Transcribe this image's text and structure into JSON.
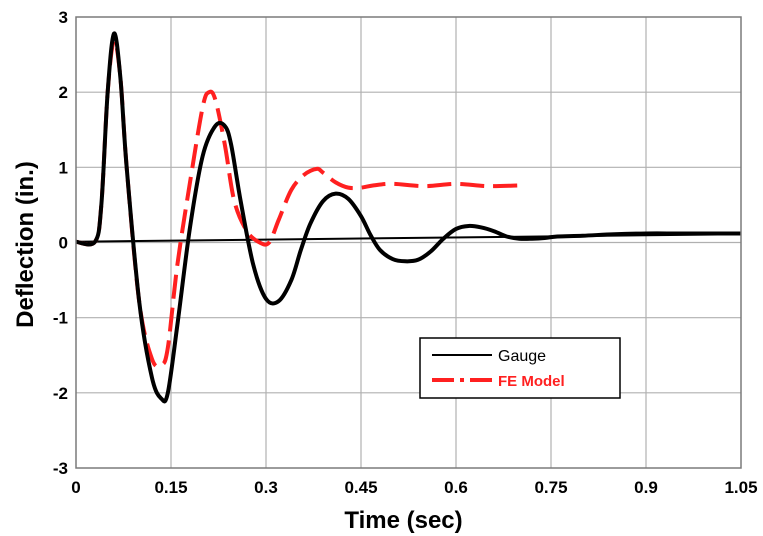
{
  "chart_data": {
    "type": "line",
    "title": "",
    "xlabel": "Time (sec)",
    "ylabel": "Deflection (in.)",
    "xlim": [
      0,
      1.05
    ],
    "ylim": [
      -3,
      3
    ],
    "x_ticks": [
      "0",
      "0.15",
      "0.3",
      "0.45",
      "0.6",
      "0.75",
      "0.9",
      "1.05"
    ],
    "y_ticks": [
      "3",
      "2",
      "1",
      "0",
      "-1",
      "-2",
      "-3"
    ],
    "grid": true,
    "legend_position": "bottom-right",
    "series": [
      {
        "name": "Gauge",
        "color": "#000000",
        "style": "solid",
        "x": [
          0,
          0.03,
          0.04,
          0.05,
          0.06,
          0.07,
          0.08,
          0.1,
          0.12,
          0.135,
          0.145,
          0.16,
          0.18,
          0.2,
          0.22,
          0.235,
          0.245,
          0.26,
          0.28,
          0.3,
          0.32,
          0.34,
          0.355,
          0.37,
          0.39,
          0.41,
          0.43,
          0.45,
          0.465,
          0.48,
          0.5,
          0.52,
          0.54,
          0.56,
          0.58,
          0.6,
          0.62,
          0.64,
          0.66,
          0.68,
          0.7,
          0.72,
          0.74,
          0.76,
          0.8,
          0.85,
          0.9,
          0.95,
          1.0,
          1.05
        ],
        "y": [
          0.01,
          0.01,
          0.5,
          2.0,
          2.78,
          2.2,
          1.0,
          -0.8,
          -1.8,
          -2.08,
          -2.0,
          -1.1,
          0.2,
          1.15,
          1.55,
          1.55,
          1.3,
          0.55,
          -0.3,
          -0.75,
          -0.78,
          -0.5,
          -0.1,
          0.25,
          0.55,
          0.65,
          0.58,
          0.35,
          0.1,
          -0.1,
          -0.22,
          -0.25,
          -0.23,
          -0.12,
          0.05,
          0.18,
          0.22,
          0.2,
          0.15,
          0.08,
          0.05,
          0.05,
          0.06,
          0.08,
          0.09,
          0.11,
          0.12,
          0.12,
          0.12,
          0.12
        ]
      },
      {
        "name": "FE Model",
        "color": "#ff2020",
        "style": "dashed",
        "x": [
          0,
          0.03,
          0.04,
          0.05,
          0.06,
          0.07,
          0.08,
          0.1,
          0.12,
          0.135,
          0.145,
          0.16,
          0.18,
          0.2,
          0.21,
          0.22,
          0.235,
          0.25,
          0.27,
          0.29,
          0.305,
          0.32,
          0.34,
          0.36,
          0.38,
          0.39,
          0.41,
          0.43,
          0.45,
          0.47,
          0.5,
          0.55,
          0.6,
          0.65,
          0.7
        ],
        "y": [
          0.01,
          0.01,
          0.5,
          2.0,
          2.68,
          2.2,
          1.0,
          -0.8,
          -1.55,
          -1.63,
          -1.4,
          -0.3,
          0.8,
          1.8,
          2.0,
          1.9,
          1.3,
          0.55,
          0.15,
          0.0,
          0.0,
          0.3,
          0.7,
          0.9,
          0.98,
          0.93,
          0.8,
          0.73,
          0.73,
          0.76,
          0.78,
          0.75,
          0.78,
          0.75,
          0.76
        ]
      },
      {
        "name": "",
        "color": "#000000",
        "style": "thin",
        "x": [
          0,
          1.05
        ],
        "y": [
          0.01,
          0.11
        ]
      }
    ]
  },
  "legend": {
    "gauge_label": "Gauge",
    "fe_label": "FE Model"
  }
}
